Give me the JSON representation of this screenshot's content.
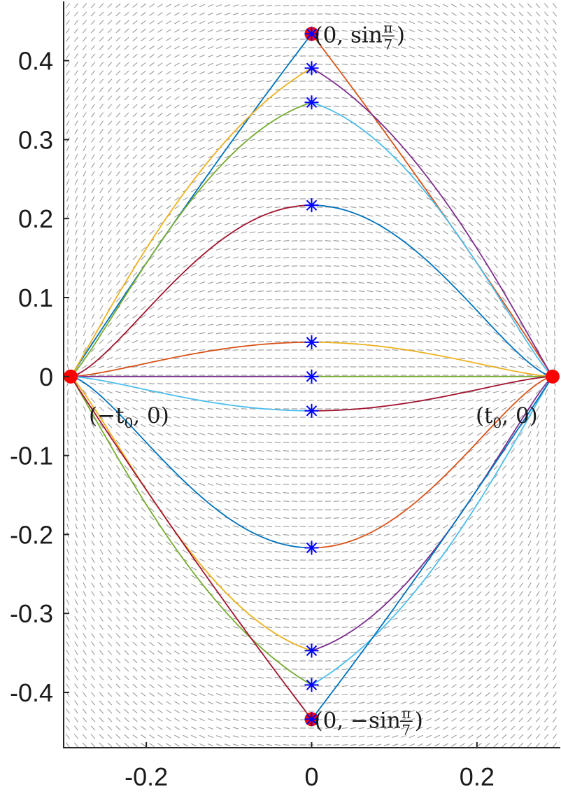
{
  "chart_data": {
    "type": "line",
    "title": "",
    "xlabel": "",
    "ylabel": "",
    "xlim": [
      -0.3,
      0.3
    ],
    "ylim": [
      -0.47,
      0.475
    ],
    "grid": false,
    "legend": "none",
    "xticks": [
      -0.2,
      0,
      0.2
    ],
    "xtick_labels": [
      "-0.2",
      "0",
      "0.2"
    ],
    "yticks": [
      -0.4,
      -0.3,
      -0.2,
      -0.1,
      0,
      0.1,
      0.2,
      0.3,
      0.4
    ],
    "ytick_labels": [
      "-0.4",
      "-0.3",
      "-0.2",
      "-0.1",
      "0",
      "0.1",
      "0.2",
      "0.3",
      "0.4"
    ],
    "t0": 0.2915,
    "curve_apex_y": [
      0.4339,
      0.3905,
      0.3471,
      0.2169,
      0.0434,
      0.0,
      -0.0434,
      -0.2169,
      -0.3471,
      -0.3905,
      -0.4339
    ],
    "curves": [
      {
        "peak": 0.4339,
        "sharp": 0.0,
        "left_color": "#0072BD",
        "right_color": "#D95319"
      },
      {
        "peak": 0.3905,
        "sharp": 0.55,
        "left_color": "#EDB120",
        "right_color": "#7E2F8E"
      },
      {
        "peak": 0.3471,
        "sharp": 0.72,
        "left_color": "#77AC30",
        "right_color": "#4DBEEE"
      },
      {
        "peak": 0.2169,
        "sharp": 1.0,
        "left_color": "#A2142F",
        "right_color": "#0072BD"
      },
      {
        "peak": 0.0434,
        "sharp": 1.0,
        "left_color": "#D95319",
        "right_color": "#EDB120"
      },
      {
        "peak": 0.0,
        "sharp": 1.0,
        "left_color": "#7E2F8E",
        "right_color": "#77AC30"
      },
      {
        "peak": -0.0434,
        "sharp": 1.0,
        "left_color": "#4DBEEE",
        "right_color": "#A2142F"
      },
      {
        "peak": -0.2169,
        "sharp": 1.0,
        "left_color": "#0072BD",
        "right_color": "#D95319"
      },
      {
        "peak": -0.3471,
        "sharp": 0.72,
        "left_color": "#EDB120",
        "right_color": "#7E2F8E"
      },
      {
        "peak": -0.3905,
        "sharp": 0.55,
        "left_color": "#77AC30",
        "right_color": "#4DBEEE"
      },
      {
        "peak": -0.4339,
        "sharp": 0.0,
        "left_color": "#A2142F",
        "right_color": "#0072BD"
      }
    ],
    "fixed_points": [
      {
        "x": -0.2915,
        "y": 0
      },
      {
        "x": 0.2915,
        "y": 0
      },
      {
        "x": 0,
        "y": 0.4339
      },
      {
        "x": 0,
        "y": -0.4339
      }
    ],
    "annotations": [
      {
        "id": "top",
        "x": 0,
        "y": 0.4339,
        "text_main": "(0, sin",
        "frac_num": "π",
        "frac_den": "7",
        "text_end": ")"
      },
      {
        "id": "bottom",
        "x": 0,
        "y": -0.4339,
        "text_main": "(0, −sin",
        "frac_num": "π",
        "frac_den": "7",
        "text_end": ")"
      },
      {
        "id": "left",
        "x": -0.2915,
        "y": 0,
        "text_main": "(−t",
        "sub": "0",
        "text_end": ", 0)"
      },
      {
        "id": "right",
        "x": 0.2915,
        "y": 0,
        "text_main": "(t",
        "sub": "0",
        "text_end": ", 0)"
      }
    ],
    "colors": {
      "marker_star": "#0000FF",
      "fixed_point": "#FF0000",
      "vector_field": "#9a9a9a",
      "axes": "#262626"
    }
  }
}
